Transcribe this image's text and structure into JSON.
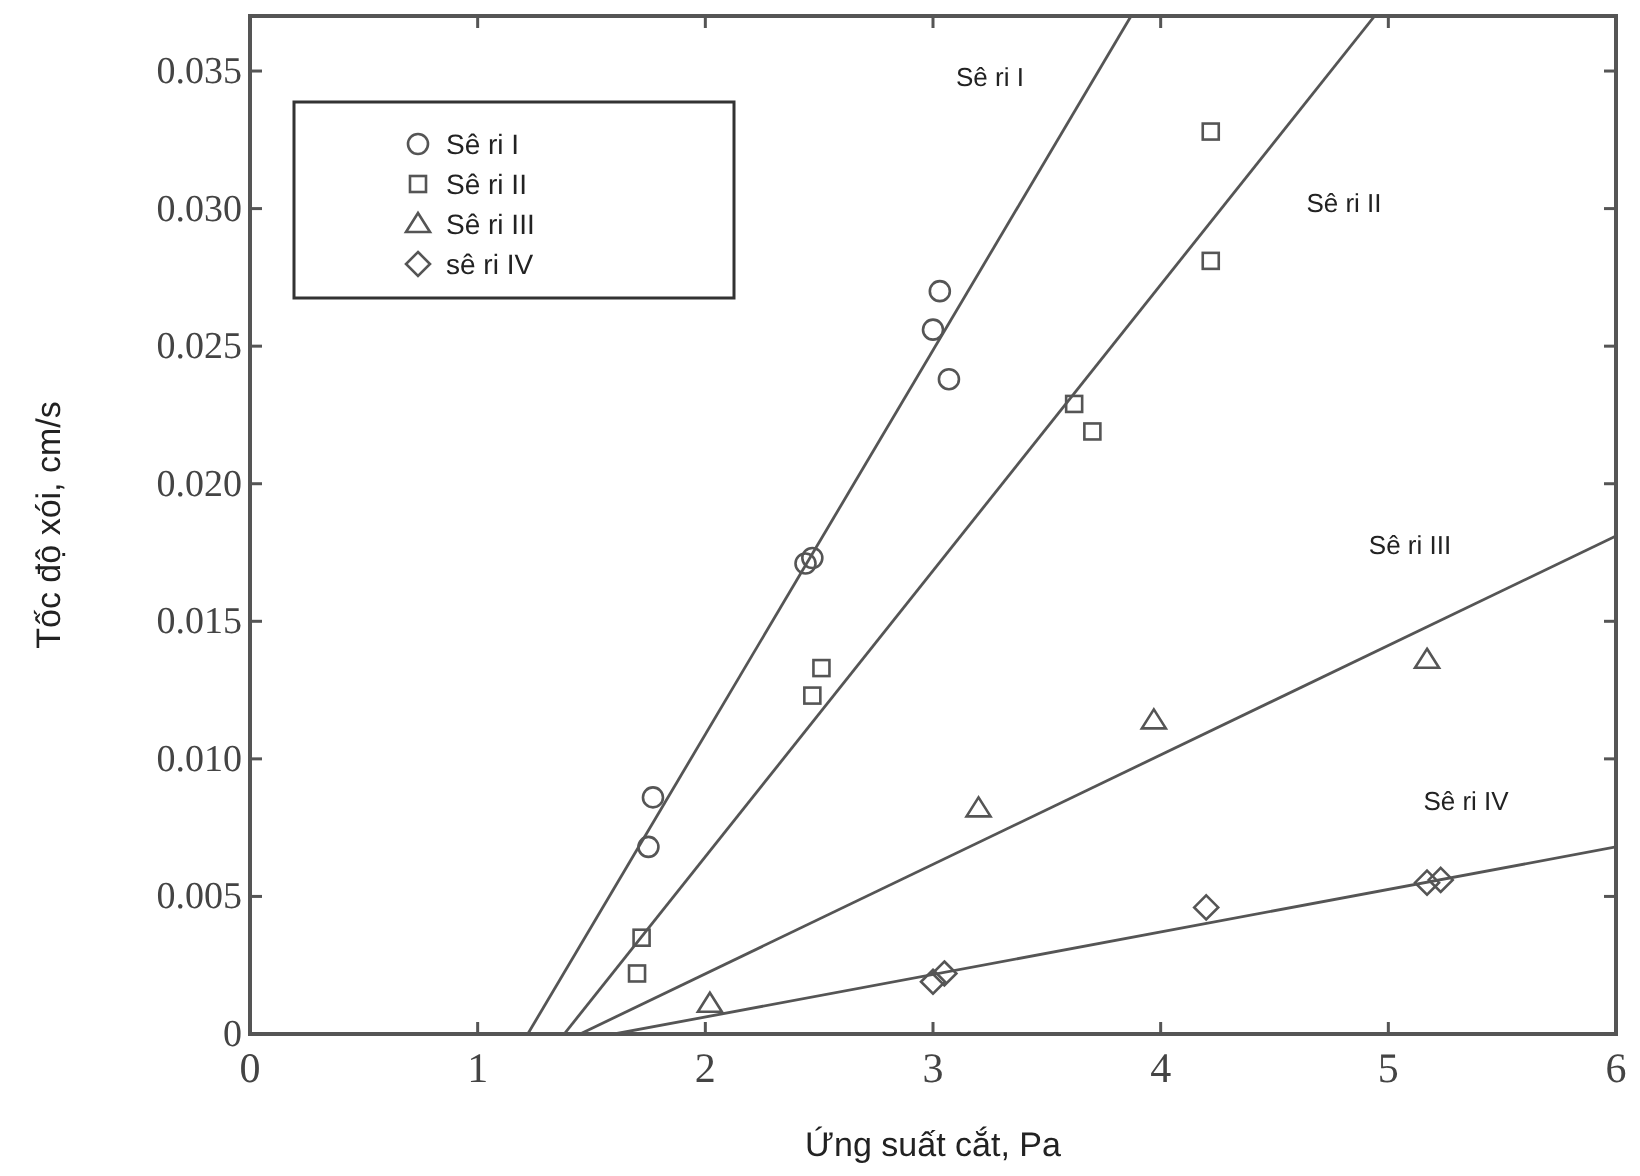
{
  "chart_data": {
    "type": "scatter",
    "xlabel": "Ứng suất cắt, Pa",
    "ylabel": "Tốc độ xói, cm/s",
    "xlim": [
      0,
      6
    ],
    "ylim": [
      0,
      0.037
    ],
    "xticks": [
      0,
      1,
      2,
      3,
      4,
      5,
      6
    ],
    "yticks": [
      0,
      {
        "value": 0.005,
        "label": "0.005"
      },
      {
        "value": 0.01,
        "label": "0.010"
      },
      {
        "value": 0.015,
        "label": "0.015"
      },
      {
        "value": 0.02,
        "label": "0.020"
      },
      {
        "value": 0.025,
        "label": "0.025"
      },
      {
        "value": 0.03,
        "label": "0.030"
      },
      {
        "value": 0.035,
        "label": "0.035"
      }
    ],
    "grid": false,
    "legend": "top left",
    "series": [
      {
        "name": "Sê ri I",
        "marker": "circle",
        "color": "#555555",
        "x": [
          1.75,
          1.77,
          2.44,
          2.47,
          3.0,
          3.03,
          3.07
        ],
        "values": [
          0.0068,
          0.0086,
          0.0171,
          0.0173,
          0.0256,
          0.027,
          0.0238
        ]
      },
      {
        "name": "Sê ri II",
        "marker": "square",
        "color": "#555555",
        "x": [
          1.7,
          1.72,
          2.47,
          2.51,
          3.62,
          3.7,
          4.22,
          4.22
        ],
        "values": [
          0.0022,
          0.0035,
          0.0123,
          0.0133,
          0.0229,
          0.0219,
          0.0328,
          0.0281
        ]
      },
      {
        "name": "Sê ri III",
        "marker": "triangle",
        "color": "#555555",
        "x": [
          2.02,
          3.2,
          3.97,
          5.17
        ],
        "values": [
          0.0011,
          0.0082,
          0.0114,
          0.0136
        ]
      },
      {
        "name": "sê ri IV",
        "marker": "diamond",
        "color": "#555555",
        "x": [
          3.0,
          3.05,
          4.2,
          5.17,
          5.23
        ],
        "values": [
          0.0019,
          0.0022,
          0.0046,
          0.0055,
          0.0056
        ]
      },
      {
        "type": "line",
        "marker": "none",
        "color": "#555555",
        "x": [
          1.22,
          3.87
        ],
        "values": [
          0,
          0.037
        ]
      },
      {
        "type": "line",
        "marker": "none",
        "color": "#555555",
        "x": [
          1.38,
          4.94
        ],
        "values": [
          0,
          0.037
        ]
      },
      {
        "type": "line",
        "marker": "none",
        "color": "#555555",
        "x": [
          1.45,
          6
        ],
        "values": [
          0,
          0.0181
        ]
      },
      {
        "type": "line",
        "marker": "none",
        "color": "#555555",
        "x": [
          1.6,
          6
        ],
        "values": [
          0,
          0.0068
        ]
      }
    ],
    "annotations": [
      "Sê ri I",
      "Sê ri II",
      "Sê ri III",
      "Sê ri IV"
    ]
  }
}
